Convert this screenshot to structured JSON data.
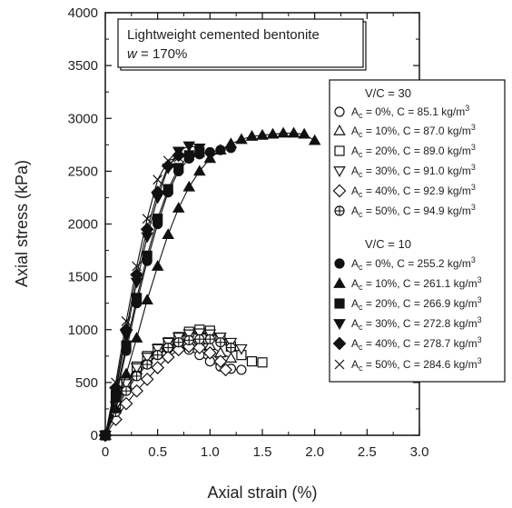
{
  "chart_data": {
    "type": "scatter",
    "xlabel": "Axial strain (%)",
    "ylabel": "Axial stress (kPa)",
    "xlim": [
      0,
      3.0
    ],
    "ylim": [
      0,
      4000
    ],
    "xticks": [
      "0",
      "0.5",
      "1.0",
      "1.5",
      "2.0",
      "2.5",
      "3.0"
    ],
    "yticks": [
      "0",
      "500",
      "1000",
      "1500",
      "2000",
      "2500",
      "3000",
      "3500",
      "4000"
    ],
    "note": {
      "line1": "Lightweight cemented bentonite",
      "w_symbol": "w",
      "w_value": " = 170%"
    },
    "legend": {
      "placement": "right",
      "group1_title": "V/C = 30",
      "group2_title": "V/C = 10"
    },
    "series": [
      {
        "group": 1,
        "marker": "circle-open",
        "ac": "0%",
        "c": "85.1",
        "points": [
          [
            0,
            0
          ],
          [
            0.1,
            250
          ],
          [
            0.2,
            450
          ],
          [
            0.3,
            580
          ],
          [
            0.4,
            690
          ],
          [
            0.5,
            760
          ],
          [
            0.6,
            820
          ],
          [
            0.7,
            840
          ],
          [
            0.8,
            810
          ],
          [
            0.9,
            760
          ],
          [
            1.0,
            700
          ],
          [
            1.1,
            650
          ],
          [
            1.2,
            630
          ],
          [
            1.3,
            620
          ]
        ]
      },
      {
        "group": 1,
        "marker": "triangle-up-open",
        "ac": "10%",
        "c": "87.0",
        "points": [
          [
            0,
            0
          ],
          [
            0.1,
            270
          ],
          [
            0.2,
            480
          ],
          [
            0.3,
            620
          ],
          [
            0.4,
            720
          ],
          [
            0.5,
            790
          ],
          [
            0.6,
            850
          ],
          [
            0.7,
            900
          ],
          [
            0.8,
            920
          ],
          [
            0.9,
            900
          ],
          [
            1.0,
            850
          ],
          [
            1.1,
            780
          ],
          [
            1.2,
            730
          ]
        ]
      },
      {
        "group": 1,
        "marker": "square-open",
        "ac": "20%",
        "c": "89.0",
        "points": [
          [
            0,
            0
          ],
          [
            0.1,
            300
          ],
          [
            0.2,
            500
          ],
          [
            0.3,
            650
          ],
          [
            0.4,
            750
          ],
          [
            0.5,
            820
          ],
          [
            0.6,
            880
          ],
          [
            0.7,
            930
          ],
          [
            0.8,
            980
          ],
          [
            0.9,
            1000
          ],
          [
            1.0,
            990
          ],
          [
            1.1,
            920
          ],
          [
            1.2,
            840
          ],
          [
            1.3,
            760
          ],
          [
            1.4,
            700
          ],
          [
            1.5,
            690
          ]
        ]
      },
      {
        "group": 1,
        "marker": "triangle-down-open",
        "ac": "30%",
        "c": "91.0",
        "points": [
          [
            0,
            0
          ],
          [
            0.1,
            280
          ],
          [
            0.2,
            490
          ],
          [
            0.3,
            640
          ],
          [
            0.4,
            740
          ],
          [
            0.5,
            820
          ],
          [
            0.6,
            880
          ],
          [
            0.7,
            930
          ],
          [
            0.8,
            960
          ],
          [
            0.9,
            970
          ],
          [
            1.0,
            960
          ],
          [
            1.1,
            930
          ],
          [
            1.2,
            880
          ],
          [
            1.3,
            820
          ]
        ]
      },
      {
        "group": 1,
        "marker": "diamond-open",
        "ac": "40%",
        "c": "92.9",
        "points": [
          [
            0,
            0
          ],
          [
            0.1,
            150
          ],
          [
            0.2,
            300
          ],
          [
            0.3,
            420
          ],
          [
            0.4,
            530
          ],
          [
            0.5,
            640
          ],
          [
            0.6,
            740
          ],
          [
            0.7,
            810
          ],
          [
            0.8,
            840
          ],
          [
            0.9,
            830
          ],
          [
            1.0,
            780
          ],
          [
            1.1,
            700
          ],
          [
            1.15,
            620
          ]
        ]
      },
      {
        "group": 1,
        "marker": "circle-plus",
        "ac": "50%",
        "c": "94.9",
        "points": [
          [
            0,
            0
          ],
          [
            0.1,
            220
          ],
          [
            0.2,
            420
          ],
          [
            0.3,
            560
          ],
          [
            0.4,
            670
          ],
          [
            0.5,
            760
          ],
          [
            0.6,
            830
          ],
          [
            0.7,
            880
          ],
          [
            0.8,
            900
          ],
          [
            0.9,
            910
          ],
          [
            1.0,
            910
          ],
          [
            1.1,
            880
          ],
          [
            1.2,
            830
          ]
        ]
      },
      {
        "group": 2,
        "marker": "circle-filled",
        "ac": "0%",
        "c": "255.2",
        "points": [
          [
            0,
            0
          ],
          [
            0.1,
            350
          ],
          [
            0.2,
            800
          ],
          [
            0.3,
            1250
          ],
          [
            0.4,
            1650
          ],
          [
            0.5,
            2000
          ],
          [
            0.6,
            2300
          ],
          [
            0.7,
            2500
          ],
          [
            0.8,
            2620
          ],
          [
            0.9,
            2660
          ],
          [
            1.0,
            2680
          ],
          [
            1.1,
            2700
          ],
          [
            1.2,
            2720
          ]
        ]
      },
      {
        "group": 2,
        "marker": "triangle-up-filled",
        "ac": "10%",
        "c": "261.1",
        "points": [
          [
            0,
            0
          ],
          [
            0.1,
            250
          ],
          [
            0.2,
            580
          ],
          [
            0.3,
            920
          ],
          [
            0.4,
            1280
          ],
          [
            0.5,
            1600
          ],
          [
            0.6,
            1900
          ],
          [
            0.7,
            2150
          ],
          [
            0.8,
            2350
          ],
          [
            0.9,
            2500
          ],
          [
            1.0,
            2620
          ],
          [
            1.1,
            2700
          ],
          [
            1.2,
            2760
          ],
          [
            1.3,
            2800
          ],
          [
            1.4,
            2830
          ],
          [
            1.5,
            2840
          ],
          [
            1.6,
            2850
          ],
          [
            1.7,
            2860
          ],
          [
            1.8,
            2860
          ],
          [
            1.9,
            2850
          ],
          [
            2.0,
            2790
          ]
        ]
      },
      {
        "group": 2,
        "marker": "square-filled",
        "ac": "20%",
        "c": "266.9",
        "points": [
          [
            0,
            0
          ],
          [
            0.1,
            380
          ],
          [
            0.2,
            850
          ],
          [
            0.3,
            1300
          ],
          [
            0.4,
            1700
          ],
          [
            0.5,
            2050
          ],
          [
            0.6,
            2330
          ],
          [
            0.7,
            2530
          ],
          [
            0.8,
            2650
          ],
          [
            0.9,
            2680
          ]
        ]
      },
      {
        "group": 2,
        "marker": "triangle-down-filled",
        "ac": "30%",
        "c": "272.8",
        "points": [
          [
            0,
            0
          ],
          [
            0.1,
            420
          ],
          [
            0.2,
            950
          ],
          [
            0.3,
            1450
          ],
          [
            0.4,
            1880
          ],
          [
            0.5,
            2250
          ],
          [
            0.6,
            2530
          ],
          [
            0.7,
            2690
          ],
          [
            0.8,
            2740
          ],
          [
            0.9,
            2720
          ]
        ]
      },
      {
        "group": 2,
        "marker": "diamond-filled",
        "ac": "40%",
        "c": "278.7",
        "points": [
          [
            0,
            0
          ],
          [
            0.1,
            450
          ],
          [
            0.2,
            1000
          ],
          [
            0.3,
            1520
          ],
          [
            0.4,
            1950
          ],
          [
            0.5,
            2300
          ],
          [
            0.6,
            2550
          ],
          [
            0.7,
            2650
          ],
          [
            0.8,
            2650
          ]
        ]
      },
      {
        "group": 2,
        "marker": "cross",
        "ac": "50%",
        "c": "284.6",
        "points": [
          [
            0,
            0
          ],
          [
            0.1,
            500
          ],
          [
            0.2,
            1080
          ],
          [
            0.3,
            1600
          ],
          [
            0.4,
            2050
          ],
          [
            0.5,
            2420
          ],
          [
            0.6,
            2600
          ],
          [
            0.7,
            2630
          ]
        ]
      }
    ]
  }
}
